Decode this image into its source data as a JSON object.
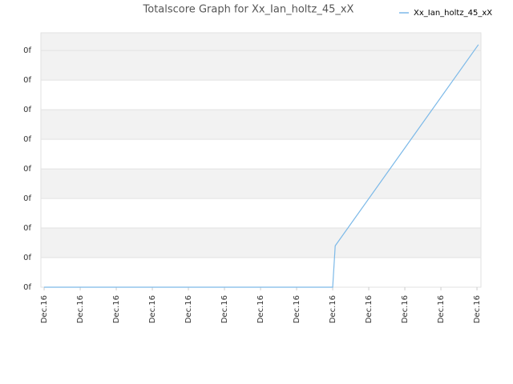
{
  "chart_data": {
    "type": "line",
    "title": "Totalscore Graph for Xx_Ian_holtz_45_xX",
    "series": [
      {
        "name": "Xx_Ian_holtz_45_xX",
        "color": "#7cb9e8",
        "x": [
          0,
          8.0,
          8.07,
          12.04
        ],
        "values": [
          0,
          0,
          1.4,
          8.2
        ]
      }
    ],
    "xlim": [
      -0.09,
      12.11
    ],
    "xticks": [
      {
        "value": 0,
        "label": "Dec.16"
      },
      {
        "value": 1,
        "label": "Dec.16"
      },
      {
        "value": 2,
        "label": "Dec.16"
      },
      {
        "value": 3,
        "label": "Dec.16"
      },
      {
        "value": 4,
        "label": "Dec.16"
      },
      {
        "value": 5,
        "label": "Dec.16"
      },
      {
        "value": 6,
        "label": "Dec.16"
      },
      {
        "value": 7,
        "label": "Dec.16"
      },
      {
        "value": 8,
        "label": "Dec.16"
      },
      {
        "value": 9,
        "label": "Dec.16"
      },
      {
        "value": 10,
        "label": "Dec.16"
      },
      {
        "value": 11,
        "label": "Dec.16"
      },
      {
        "value": 12,
        "label": "Dec.16"
      }
    ],
    "ylim": [
      0,
      8.6
    ],
    "yticks": [
      {
        "value": 0,
        "label": "0f"
      },
      {
        "value": 1,
        "label": "0f"
      },
      {
        "value": 2,
        "label": "0f"
      },
      {
        "value": 3,
        "label": "0f"
      },
      {
        "value": 4,
        "label": "0f"
      },
      {
        "value": 5,
        "label": "0f"
      },
      {
        "value": 6,
        "label": "0f"
      },
      {
        "value": 7,
        "label": "0f"
      },
      {
        "value": 8,
        "label": "0f"
      }
    ],
    "grid": true,
    "legend": "top-right"
  }
}
